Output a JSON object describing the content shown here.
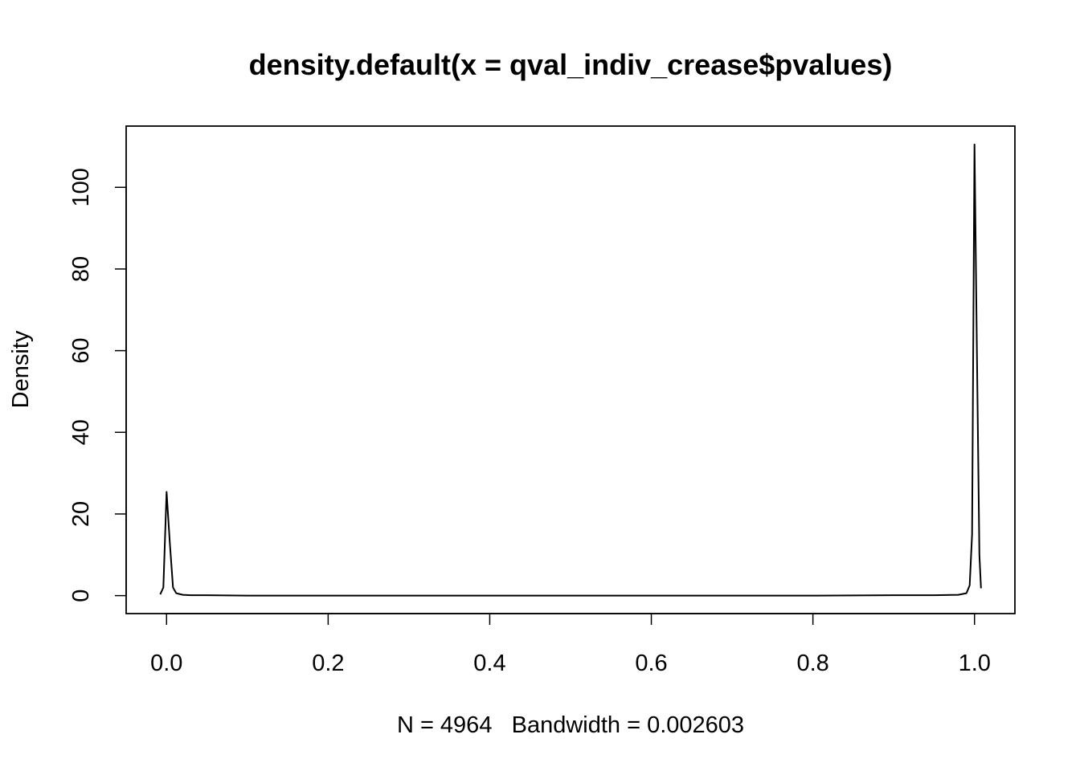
{
  "chart_data": {
    "type": "line",
    "title": "density.default(x = qval_indiv_crease$pvalues)",
    "xlabel": "N = 4964   Bandwidth = 0.002603",
    "ylabel": "Density",
    "xlim": [
      -0.05,
      1.05
    ],
    "ylim": [
      -4.4,
      115
    ],
    "x_ticks": [
      0.0,
      0.2,
      0.4,
      0.6,
      0.8,
      1.0
    ],
    "x_tick_labels": [
      "0.0",
      "0.2",
      "0.4",
      "0.6",
      "0.8",
      "1.0"
    ],
    "y_ticks": [
      0,
      20,
      40,
      60,
      80,
      100
    ],
    "y_tick_labels": [
      "0",
      "20",
      "40",
      "60",
      "80",
      "100"
    ],
    "grid": false,
    "series": [
      {
        "x": [
          -0.0078,
          -0.004,
          0.0,
          0.004,
          0.008,
          0.012,
          0.02,
          0.03,
          0.05,
          0.1,
          0.2,
          0.3,
          0.4,
          0.5,
          0.6,
          0.7,
          0.8,
          0.9,
          0.95,
          0.98,
          0.99,
          0.994,
          0.997,
          1.0,
          1.003,
          1.006,
          1.008
        ],
        "y": [
          0.3,
          2.0,
          25.4,
          13.0,
          2.0,
          0.6,
          0.2,
          0.1,
          0.1,
          0.0,
          0.0,
          0.0,
          0.0,
          0.0,
          0.0,
          0.0,
          0.0,
          0.1,
          0.1,
          0.2,
          0.6,
          2.5,
          15.0,
          110.5,
          60.0,
          10.0,
          1.8
        ]
      }
    ]
  }
}
